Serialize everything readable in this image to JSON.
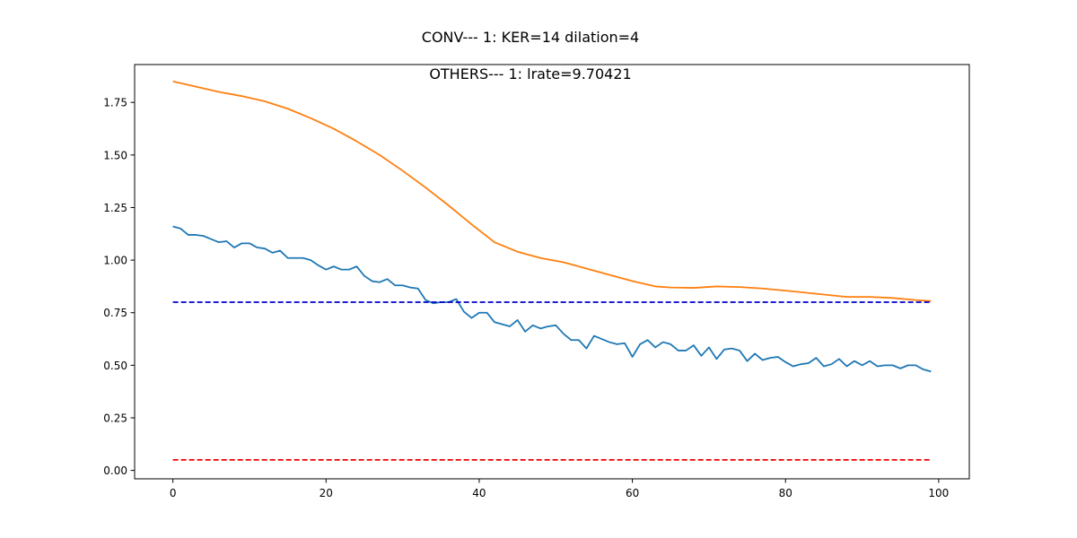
{
  "chart_data": {
    "type": "line",
    "title": "CONV--- 1: KER=14   dilation=4",
    "subtitle": "OTHERS--- 1: lrate=9.70421",
    "xlabel": "",
    "ylabel": "",
    "xlim": [
      -5,
      104
    ],
    "ylim": [
      -0.04,
      1.93
    ],
    "xticks": [
      0,
      20,
      40,
      60,
      80,
      100
    ],
    "xtick_labels": [
      "0",
      "20",
      "40",
      "60",
      "80",
      "100"
    ],
    "yticks": [
      0.0,
      0.25,
      0.5,
      0.75,
      1.0,
      1.25,
      1.5,
      1.75
    ],
    "ytick_labels": [
      "0.00",
      "0.25",
      "0.50",
      "0.75",
      "1.00",
      "1.25",
      "1.50",
      "1.75"
    ],
    "grid": false,
    "series": [
      {
        "color": "#1f77b4",
        "style": "solid",
        "x": [
          0,
          1,
          2,
          3,
          4,
          5,
          6,
          7,
          8,
          9,
          10,
          11,
          12,
          13,
          14,
          15,
          16,
          17,
          18,
          19,
          20,
          21,
          22,
          23,
          24,
          25,
          26,
          27,
          28,
          29,
          30,
          31,
          32,
          33,
          34,
          35,
          36,
          37,
          38,
          39,
          40,
          41,
          42,
          43,
          44,
          45,
          46,
          47,
          48,
          49,
          50,
          51,
          52,
          53,
          54,
          55,
          56,
          57,
          58,
          59,
          60,
          61,
          62,
          63,
          64,
          65,
          66,
          67,
          68,
          69,
          70,
          71,
          72,
          73,
          74,
          75,
          76,
          77,
          78,
          79,
          80,
          81,
          82,
          83,
          84,
          85,
          86,
          87,
          88,
          89,
          90,
          91,
          92,
          93,
          94,
          95,
          96,
          97,
          98,
          99
        ],
        "values": [
          1.16,
          1.15,
          1.12,
          1.12,
          1.115,
          1.1,
          1.085,
          1.09,
          1.06,
          1.08,
          1.08,
          1.06,
          1.055,
          1.035,
          1.045,
          1.01,
          1.01,
          1.01,
          1.0,
          0.975,
          0.955,
          0.97,
          0.955,
          0.955,
          0.97,
          0.925,
          0.9,
          0.895,
          0.91,
          0.88,
          0.88,
          0.87,
          0.865,
          0.81,
          0.795,
          0.8,
          0.8,
          0.815,
          0.755,
          0.725,
          0.75,
          0.75,
          0.705,
          0.695,
          0.685,
          0.715,
          0.66,
          0.69,
          0.675,
          0.685,
          0.69,
          0.65,
          0.62,
          0.62,
          0.58,
          0.64,
          0.625,
          0.61,
          0.6,
          0.605,
          0.54,
          0.6,
          0.62,
          0.585,
          0.61,
          0.6,
          0.57,
          0.57,
          0.595,
          0.545,
          0.585,
          0.53,
          0.575,
          0.58,
          0.57,
          0.52,
          0.555,
          0.525,
          0.535,
          0.54,
          0.515,
          0.495,
          0.505,
          0.51,
          0.535,
          0.495,
          0.505,
          0.53,
          0.495,
          0.52,
          0.5,
          0.52,
          0.495,
          0.5,
          0.5,
          0.485,
          0.5,
          0.5,
          0.48,
          0.47
        ]
      },
      {
        "color": "#ff7f0e",
        "style": "solid",
        "x": [
          0,
          3,
          6,
          9,
          12,
          15,
          18,
          21,
          24,
          27,
          30,
          33,
          36,
          39,
          42,
          45,
          48,
          51,
          54,
          57,
          60,
          63,
          65,
          68,
          71,
          74,
          77,
          80,
          84,
          88,
          91,
          94,
          97,
          99
        ],
        "values": [
          1.85,
          1.825,
          1.8,
          1.78,
          1.755,
          1.72,
          1.675,
          1.625,
          1.565,
          1.5,
          1.425,
          1.345,
          1.26,
          1.17,
          1.085,
          1.04,
          1.01,
          0.99,
          0.96,
          0.93,
          0.9,
          0.875,
          0.87,
          0.868,
          0.875,
          0.872,
          0.865,
          0.855,
          0.84,
          0.825,
          0.825,
          0.82,
          0.81,
          0.805
        ]
      },
      {
        "color": "#0000cc",
        "style": "dashed",
        "x": [
          0,
          99
        ],
        "values": [
          0.8,
          0.8
        ]
      },
      {
        "color": "#ee0000",
        "style": "dashed",
        "x": [
          0,
          99
        ],
        "values": [
          0.05,
          0.05
        ]
      }
    ]
  }
}
